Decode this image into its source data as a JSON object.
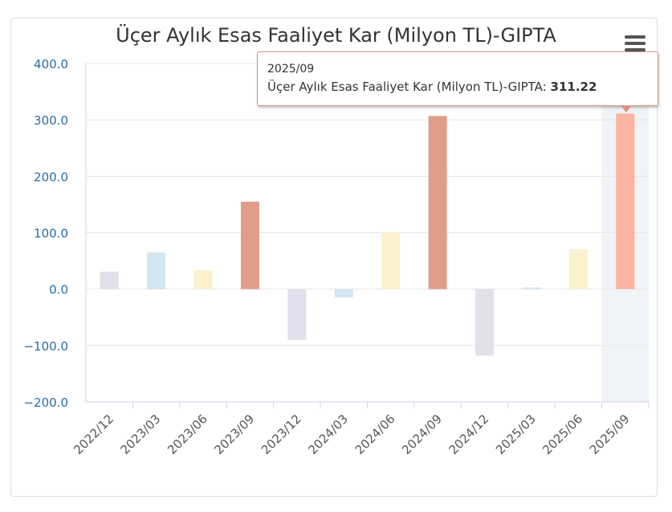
{
  "chart_data": {
    "type": "bar",
    "title": "Üçer Aylık Esas Faaliyet Kar (Milyon TL)-GIPTA",
    "categories": [
      "2022/12",
      "2023/03",
      "2023/06",
      "2023/09",
      "2023/12",
      "2024/03",
      "2024/06",
      "2024/09",
      "2024/12",
      "2025/03",
      "2025/06",
      "2025/09"
    ],
    "values": [
      31,
      65,
      33,
      155,
      -90,
      -15,
      101,
      307,
      -118,
      3,
      71,
      311.22
    ],
    "colors": [
      "#e3dfec",
      "#d4e6f2",
      "#fbf1cd",
      "#e09e8a",
      "#e3dfec",
      "#d4e6f2",
      "#fbf1cd",
      "#e09e8a",
      "#e3dfec",
      "#d4e6f2",
      "#fbf1cd",
      "#fbb4a0"
    ],
    "ylim": [
      -200,
      400
    ],
    "yticks": [
      "400.0",
      "300.0",
      "200.0",
      "100.0",
      "0.0",
      "−100.0",
      "−200.0"
    ],
    "ytick_values": [
      400,
      300,
      200,
      100,
      0,
      -100,
      -200
    ],
    "grid": true,
    "highlight_index": 11
  },
  "tooltip": {
    "header": "2025/09",
    "series_label": "Üçer Aylık Esas Faaliyet Kar (Milyon TL)-GIPTA:",
    "value": "311.22"
  },
  "menu_icon": "hamburger-icon"
}
